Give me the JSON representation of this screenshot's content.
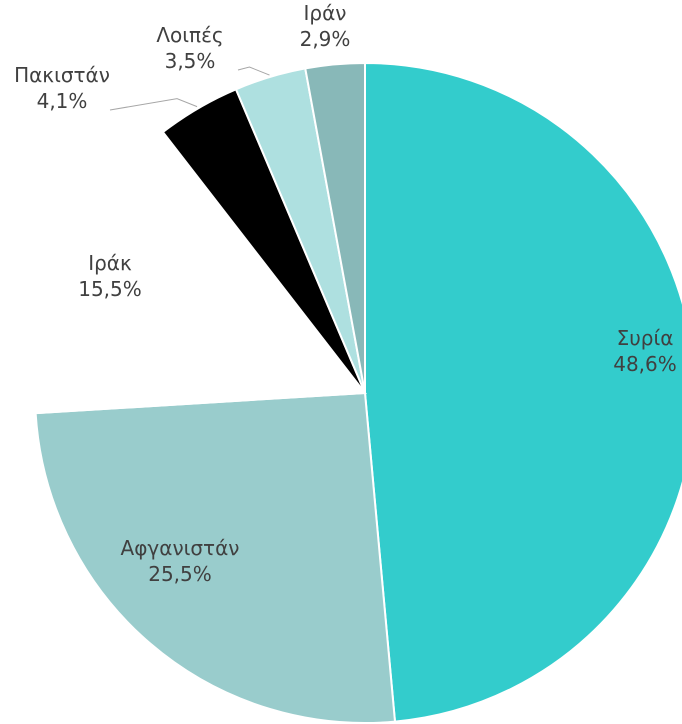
{
  "chart_data": {
    "type": "pie",
    "categories": [
      "Συρία",
      "Αφγανιστάν",
      "Ιράκ",
      "Πακιστάν",
      "Λοιπές",
      "Ιράν"
    ],
    "values": [
      48.6,
      25.5,
      15.5,
      4.1,
      3.5,
      2.9
    ],
    "value_labels": [
      "48,6%",
      "25,5%",
      "15,5%",
      "4,1%",
      "3,5%",
      "2,9%"
    ],
    "colors": [
      "#33cccc",
      "#99cccc",
      "#ffffff",
      "#000000",
      "#aee0e0",
      "#88b8b8"
    ]
  }
}
